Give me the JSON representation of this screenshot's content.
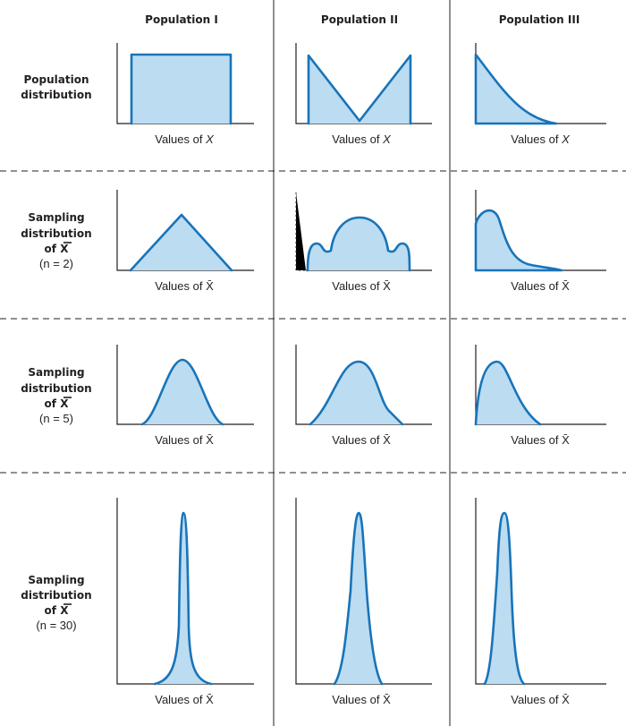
{
  "columns": [
    "Population I",
    "Population II",
    "Population III"
  ],
  "rows": [
    {
      "label": [
        "Population",
        "distribution"
      ],
      "n": "",
      "bar": [],
      "axis_var": "X"
    },
    {
      "label": [
        "Sampling",
        "distribution",
        "of X"
      ],
      "bar": [
        2
      ],
      "n": "(n = 2)",
      "axis_var": "X̄"
    },
    {
      "label": [
        "Sampling",
        "distribution",
        "of X"
      ],
      "bar": [
        2
      ],
      "n": "(n = 5)",
      "axis_var": "X̄"
    },
    {
      "label": [
        "Sampling",
        "distribution",
        "of X"
      ],
      "bar": [
        2
      ],
      "n": "(n = 30)",
      "axis_var": "X̄"
    }
  ],
  "axis_label_prefix": "Values of ",
  "colors": {
    "fill": "#bcdcf2",
    "stroke": "#1874b8",
    "text": "#231f20"
  },
  "distributions": [
    [
      "uniform",
      "v-shaped",
      "exponential"
    ],
    [
      "triangular",
      "multimodal",
      "right-skewed"
    ],
    [
      "bell",
      "bell",
      "right-skewed"
    ],
    [
      "narrow-bell",
      "narrow-bell",
      "narrow-bell"
    ]
  ]
}
